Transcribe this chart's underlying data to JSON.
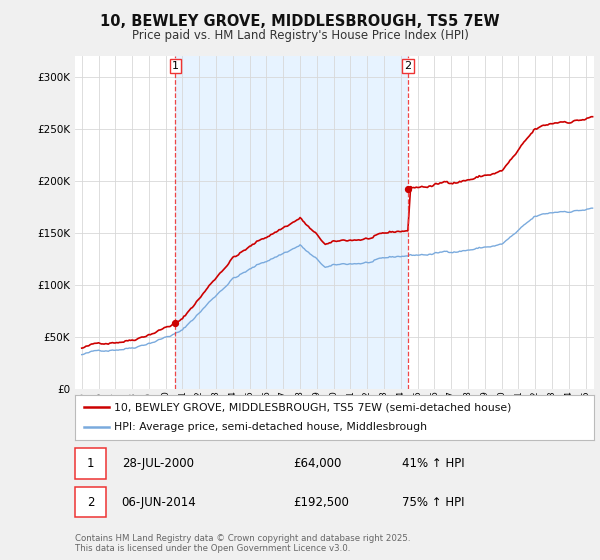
{
  "title": "10, BEWLEY GROVE, MIDDLESBROUGH, TS5 7EW",
  "subtitle": "Price paid vs. HM Land Registry's House Price Index (HPI)",
  "legend_line1": "10, BEWLEY GROVE, MIDDLESBROUGH, TS5 7EW (semi-detached house)",
  "legend_line2": "HPI: Average price, semi-detached house, Middlesbrough",
  "annotation1_label": "1",
  "annotation1_date": "28-JUL-2000",
  "annotation1_price": "£64,000",
  "annotation1_hpi": "41% ↑ HPI",
  "annotation1_year": 2000.57,
  "annotation1_value": 64000,
  "annotation2_label": "2",
  "annotation2_date": "06-JUN-2014",
  "annotation2_price": "£192,500",
  "annotation2_hpi": "75% ↑ HPI",
  "annotation2_year": 2014.43,
  "annotation2_value": 192500,
  "price_color": "#cc0000",
  "hpi_color": "#7aaadd",
  "vline_color": "#ee3333",
  "shade_color": "#ddeeff",
  "background_color": "#f0f0f0",
  "plot_bg_color": "#ffffff",
  "ylim": [
    0,
    320000
  ],
  "yticks": [
    0,
    50000,
    100000,
    150000,
    200000,
    250000,
    300000
  ],
  "xlim_min": 1994.6,
  "xlim_max": 2025.5,
  "footer": "Contains HM Land Registry data © Crown copyright and database right 2025.\nThis data is licensed under the Open Government Licence v3.0."
}
